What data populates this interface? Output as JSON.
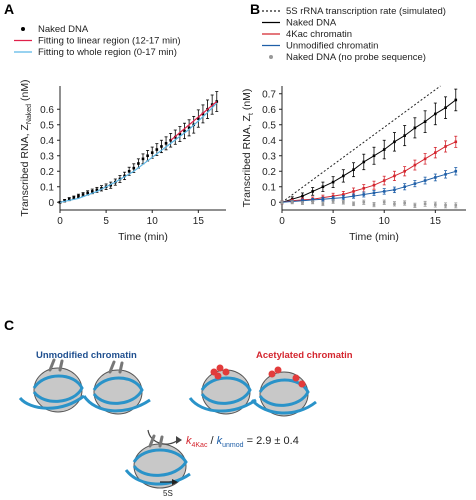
{
  "panels": {
    "a": "A",
    "b": "B",
    "c": "C"
  },
  "chart_data": [
    {
      "id": "A",
      "type": "scatter",
      "xlabel": "Time (min)",
      "ylabel_main": "Transcribed RNA, Z",
      "ylabel_sub": "Naked",
      "ylabel_unit": " (nM)",
      "xlim": [
        0,
        18
      ],
      "ylim": [
        -0.05,
        0.75
      ],
      "xticks": [
        0,
        5,
        10,
        15
      ],
      "yticks": [
        0,
        0.1,
        0.2,
        0.3,
        0.4,
        0.5,
        0.6
      ],
      "legend_position": "top-left",
      "series": [
        {
          "name": "Naked DNA",
          "kind": "points",
          "color": "#000000",
          "x": [
            0,
            0.5,
            1,
            1.5,
            2,
            2.5,
            3,
            3.5,
            4,
            4.5,
            5,
            5.5,
            6,
            6.5,
            7,
            7.5,
            8,
            8.5,
            9,
            9.5,
            10,
            10.5,
            11,
            11.5,
            12,
            12.5,
            13,
            13.5,
            14,
            14.5,
            15,
            15.5,
            16,
            16.5,
            17
          ],
          "y": [
            0.0,
            0.01,
            0.02,
            0.03,
            0.04,
            0.05,
            0.06,
            0.07,
            0.08,
            0.09,
            0.1,
            0.11,
            0.13,
            0.15,
            0.17,
            0.2,
            0.22,
            0.25,
            0.28,
            0.3,
            0.32,
            0.34,
            0.36,
            0.38,
            0.4,
            0.42,
            0.44,
            0.46,
            0.48,
            0.5,
            0.54,
            0.57,
            0.6,
            0.63,
            0.65
          ],
          "err": [
            0.005,
            0.008,
            0.01,
            0.01,
            0.012,
            0.012,
            0.014,
            0.015,
            0.016,
            0.017,
            0.018,
            0.02,
            0.02,
            0.022,
            0.024,
            0.026,
            0.028,
            0.03,
            0.032,
            0.034,
            0.036,
            0.038,
            0.04,
            0.042,
            0.044,
            0.046,
            0.048,
            0.05,
            0.052,
            0.054,
            0.056,
            0.058,
            0.06,
            0.062,
            0.064
          ]
        },
        {
          "name": "Fitting to linear region (12-17 min)",
          "kind": "line",
          "color": "#e0204a",
          "x": [
            12,
            17
          ],
          "y": [
            0.4,
            0.65
          ]
        },
        {
          "name": "Fitting to whole region (0-17 min)",
          "kind": "line",
          "color": "#5bb6e6",
          "x": [
            0,
            2,
            4,
            6,
            8,
            10,
            12,
            14,
            16,
            17
          ],
          "y": [
            0.0,
            0.025,
            0.07,
            0.13,
            0.2,
            0.29,
            0.38,
            0.47,
            0.58,
            0.64
          ]
        }
      ]
    },
    {
      "id": "B",
      "type": "scatter",
      "xlabel": "Time (min)",
      "ylabel_main": "Transcribed RNA, Z",
      "ylabel_sub": "t",
      "ylabel_unit": " (nM)",
      "xlim": [
        0,
        18
      ],
      "ylim": [
        -0.05,
        0.75
      ],
      "xticks": [
        0,
        5,
        10,
        15
      ],
      "yticks": [
        0,
        0.1,
        0.2,
        0.3,
        0.4,
        0.5,
        0.6,
        0.7
      ],
      "legend_position": "top-left",
      "series": [
        {
          "name": "5S rRNA transcription rate (simulated)",
          "kind": "dotted-line",
          "color": "#222222",
          "x": [
            0,
            15.5
          ],
          "y": [
            0.0,
            0.75
          ]
        },
        {
          "name": "Naked DNA",
          "kind": "points+line",
          "color": "#000000",
          "x": [
            0,
            1,
            2,
            3,
            4,
            5,
            6,
            7,
            8,
            9,
            10,
            11,
            12,
            13,
            14,
            15,
            16,
            17
          ],
          "y": [
            0.0,
            0.02,
            0.04,
            0.07,
            0.1,
            0.13,
            0.17,
            0.21,
            0.26,
            0.3,
            0.34,
            0.39,
            0.43,
            0.48,
            0.52,
            0.57,
            0.61,
            0.66
          ],
          "err": [
            0.01,
            0.015,
            0.02,
            0.025,
            0.03,
            0.035,
            0.04,
            0.045,
            0.05,
            0.055,
            0.06,
            0.06,
            0.065,
            0.065,
            0.07,
            0.07,
            0.07,
            0.07
          ]
        },
        {
          "name": "4Kac chromatin",
          "kind": "points+line",
          "color": "#d4262f",
          "x": [
            0,
            1,
            2,
            3,
            4,
            5,
            6,
            7,
            8,
            9,
            10,
            11,
            12,
            13,
            14,
            15,
            16,
            17
          ],
          "y": [
            0.0,
            0.01,
            0.015,
            0.02,
            0.03,
            0.04,
            0.05,
            0.07,
            0.09,
            0.11,
            0.14,
            0.17,
            0.2,
            0.24,
            0.28,
            0.32,
            0.36,
            0.39
          ],
          "err": [
            0.01,
            0.01,
            0.012,
            0.014,
            0.016,
            0.018,
            0.02,
            0.022,
            0.024,
            0.026,
            0.028,
            0.03,
            0.03,
            0.032,
            0.034,
            0.034,
            0.036,
            0.036
          ]
        },
        {
          "name": "Unmodified chromatin",
          "kind": "points+line",
          "color": "#1f5fa8",
          "x": [
            0,
            1,
            2,
            3,
            4,
            5,
            6,
            7,
            8,
            9,
            10,
            11,
            12,
            13,
            14,
            15,
            16,
            17
          ],
          "y": [
            0.0,
            0.005,
            0.01,
            0.015,
            0.02,
            0.025,
            0.03,
            0.04,
            0.05,
            0.06,
            0.07,
            0.08,
            0.1,
            0.12,
            0.14,
            0.16,
            0.18,
            0.2
          ],
          "err": [
            0.008,
            0.008,
            0.01,
            0.01,
            0.012,
            0.012,
            0.014,
            0.014,
            0.016,
            0.016,
            0.018,
            0.018,
            0.02,
            0.02,
            0.022,
            0.022,
            0.024,
            0.024
          ]
        },
        {
          "name": "Naked DNA (no probe sequence)",
          "kind": "points",
          "color": "#999999",
          "x": [
            0,
            1,
            2,
            3,
            4,
            5,
            6,
            7,
            8,
            9,
            10,
            11,
            12,
            13,
            14,
            15,
            16,
            17
          ],
          "y": [
            0.0,
            0.0,
            -0.005,
            0.0,
            -0.01,
            0.005,
            0.0,
            -0.01,
            0.0,
            -0.015,
            0.0,
            -0.01,
            -0.005,
            -0.02,
            -0.01,
            -0.015,
            -0.02,
            -0.02
          ],
          "err": [
            0.01,
            0.01,
            0.01,
            0.01,
            0.012,
            0.012,
            0.012,
            0.012,
            0.014,
            0.014,
            0.014,
            0.014,
            0.014,
            0.014,
            0.016,
            0.016,
            0.016,
            0.016
          ]
        }
      ]
    }
  ],
  "panel_c": {
    "unmodified_title": "Unmodified chromatin",
    "acetylated_title": "Acetylated chromatin",
    "label_5s": "5S",
    "eq_k": "k",
    "eq_num_sub": "4Kac",
    "eq_slash": " / ",
    "eq_den_sub": "unmod",
    "eq_value": " = 2.9 ± 0.4",
    "colors": {
      "unmodified": "#1f4f8f",
      "acetylated": "#d4262f",
      "dna": "#2a93c9",
      "histone": "#bdbdbd",
      "acetyl": "#e23b3b"
    }
  }
}
